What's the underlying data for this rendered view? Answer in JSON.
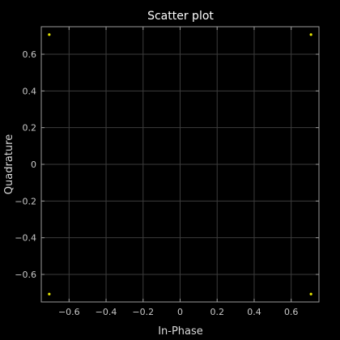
{
  "chart_data": {
    "type": "scatter",
    "title": "Scatter plot",
    "xlabel": "In-Phase",
    "ylabel": "Quadrature",
    "xlim": [
      -0.75,
      0.75
    ],
    "ylim": [
      -0.75,
      0.75
    ],
    "xticks": [
      -0.6,
      -0.4,
      -0.2,
      0,
      0.2,
      0.4,
      0.6
    ],
    "yticks": [
      -0.6,
      -0.4,
      -0.2,
      0,
      0.2,
      0.4,
      0.6
    ],
    "grid": true,
    "colors": {
      "background": "#000000",
      "axes_bg": "#000000",
      "axis": "#9a9a9a",
      "grid": "#3c3c3c",
      "marker": "#e6e600"
    },
    "series": [
      {
        "points": [
          {
            "x": -0.707,
            "y": 0.707
          },
          {
            "x": 0.707,
            "y": 0.707
          },
          {
            "x": -0.707,
            "y": -0.707
          },
          {
            "x": 0.707,
            "y": -0.707
          }
        ]
      }
    ]
  }
}
